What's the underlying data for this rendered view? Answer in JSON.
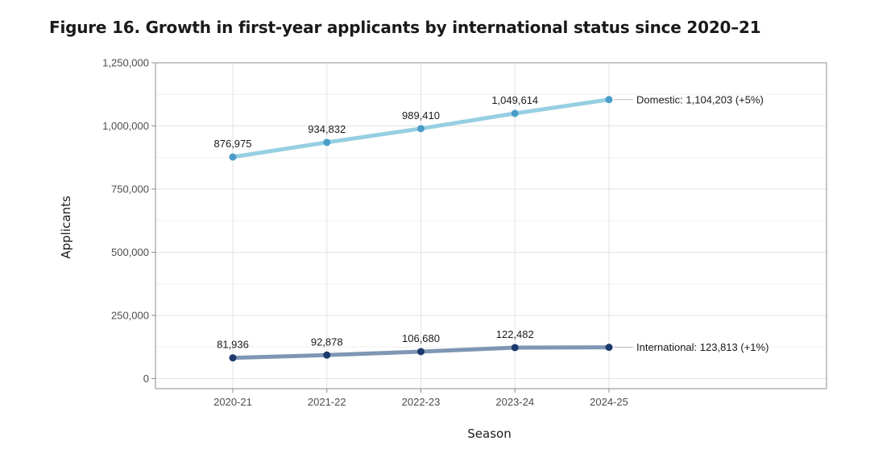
{
  "chart_data": {
    "type": "line",
    "title": "Figure 16. Growth in first-year applicants by international status since 2020–21",
    "xlabel": "Season",
    "ylabel": "Applicants",
    "categories": [
      "2020-21",
      "2021-22",
      "2022-23",
      "2023-24",
      "2024-25"
    ],
    "ylim": [
      -40000,
      1250000
    ],
    "yticks": [
      0,
      250000,
      500000,
      750000,
      1000000,
      1250000
    ],
    "ytick_labels": [
      "0",
      "250,000",
      "500,000",
      "750,000",
      "1,000,000",
      "1,250,000"
    ],
    "grid": true,
    "legend": "none",
    "series": [
      {
        "name": "Domestic",
        "values": [
          876975,
          934832,
          989410,
          1049614,
          1104203
        ],
        "point_labels": [
          "876,975",
          "934,832",
          "989,410",
          "1,049,614",
          ""
        ],
        "end_label": "Domestic: 1,104,203 (+5%)",
        "line_color": "#96cfe3",
        "point_color": "#4a9dc9"
      },
      {
        "name": "International",
        "values": [
          81936,
          92878,
          106680,
          122482,
          123813
        ],
        "point_labels": [
          "81,936",
          "92,878",
          "106,680",
          "122,482",
          ""
        ],
        "end_label": "International: 123,813 (+1%)",
        "line_color": "#7f96b4",
        "point_color": "#1b3a6b"
      }
    ]
  }
}
